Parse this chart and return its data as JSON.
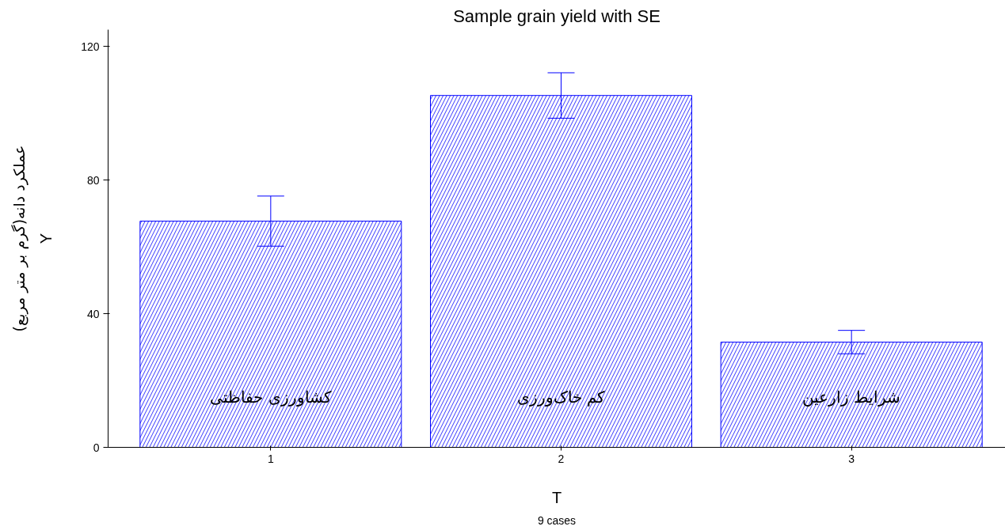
{
  "chart_data": {
    "type": "bar",
    "title": "Sample grain yield with SE",
    "xlabel": "T",
    "ylabel": "Y",
    "categories": [
      "1",
      "2",
      "3"
    ],
    "series": [
      {
        "color": "#0000ff",
        "values": [
          67.7,
          105.3,
          31.5
        ],
        "errors": [
          7.5,
          6.8,
          3.5
        ]
      }
    ],
    "ylim": [
      0,
      125
    ],
    "yticks": [
      0,
      40,
      80,
      120
    ],
    "grid": false,
    "annotations": [
      "کشاورزی حفاظتی",
      "کم خاک‌ورزی",
      "شرایط زارعین",
      "عملکرد دانه(گرم بر متر مربع)",
      "9 cases"
    ]
  }
}
